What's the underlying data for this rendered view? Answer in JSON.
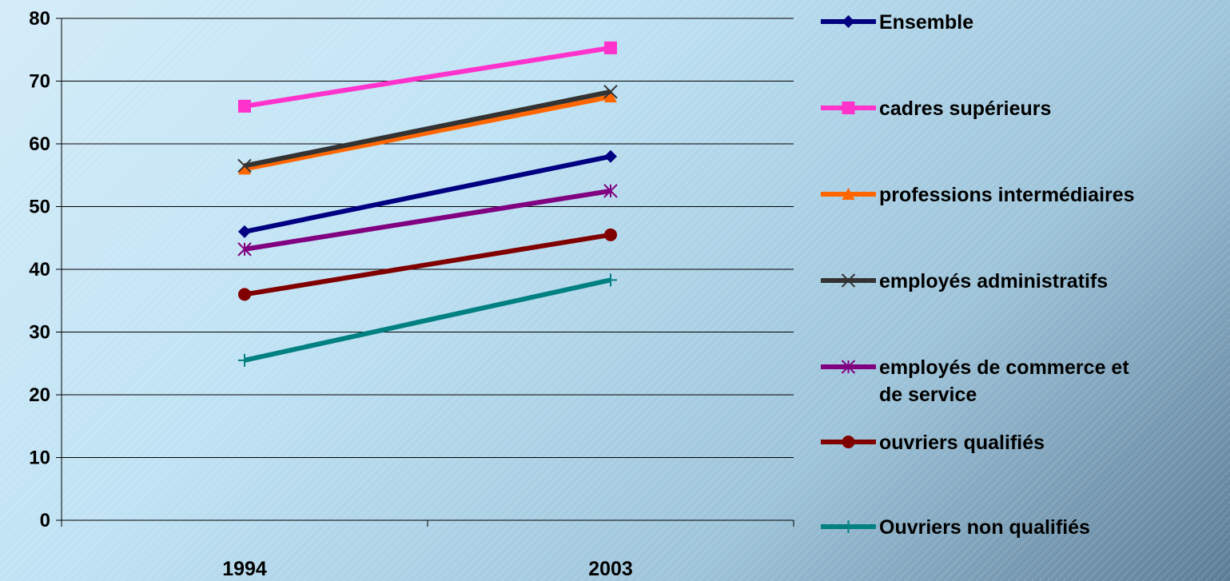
{
  "chart_data": {
    "type": "line",
    "categories": [
      "1994",
      "2003"
    ],
    "ylim": [
      0,
      80
    ],
    "yticks": [
      0,
      10,
      20,
      30,
      40,
      50,
      60,
      70,
      80
    ],
    "grid": true,
    "legend_position": "right",
    "series": [
      {
        "name": "Ensemble",
        "values": [
          46,
          58
        ],
        "color": "#000080",
        "marker": "diamond"
      },
      {
        "name": "cadres supérieurs",
        "values": [
          66,
          75.3
        ],
        "color": "#ff33cc",
        "marker": "square"
      },
      {
        "name": "professions intermédiaires",
        "values": [
          56,
          67.5
        ],
        "color": "#ff6600",
        "marker": "triangle"
      },
      {
        "name": "employés administratifs",
        "values": [
          56.5,
          68.3
        ],
        "color": "#333333",
        "marker": "x"
      },
      {
        "name": "employés de commerce et de service",
        "values": [
          43.2,
          52.5
        ],
        "color": "#800080",
        "marker": "star"
      },
      {
        "name": "ouvriers qualifiés",
        "values": [
          36,
          45.5
        ],
        "color": "#800000",
        "marker": "circle"
      },
      {
        "name": "Ouvriers non qualifiés",
        "values": [
          25.5,
          38.3
        ],
        "color": "#008080",
        "marker": "plus"
      }
    ],
    "legend_lines": [
      [
        "Ensemble"
      ],
      [
        "cadres supérieurs"
      ],
      [
        "professions intermédiaires"
      ],
      [
        "employés administratifs"
      ],
      [
        "employés de commerce et",
        "de service"
      ],
      [
        "ouvriers qualifiés"
      ],
      [
        "Ouvriers non qualifiés"
      ]
    ]
  }
}
